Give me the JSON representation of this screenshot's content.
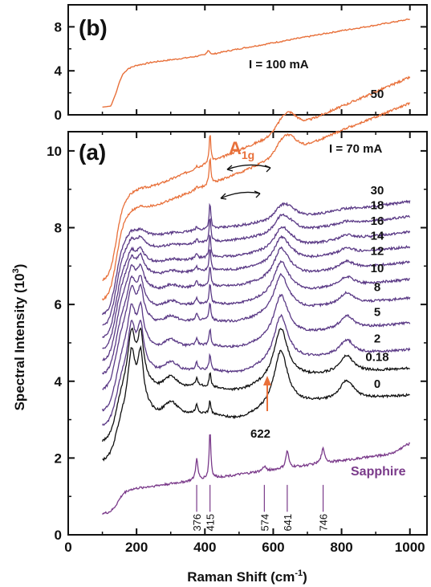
{
  "chart_data": [
    {
      "panel": "(b)",
      "type": "line",
      "xlabel": "",
      "ylabel": "",
      "xlim": [
        0,
        1050
      ],
      "ylim": [
        0,
        10
      ],
      "yticks": [
        0,
        4,
        8
      ],
      "annotation": "I = 100 mA",
      "color": "#e8703a",
      "grid": false,
      "series": [
        {
          "x": [
            100,
            125,
            140,
            150,
            160,
            175,
            200,
            250,
            300,
            350,
            400,
            410,
            420,
            450,
            500,
            600,
            700,
            800,
            900,
            1000
          ],
          "y": [
            0.7,
            0.8,
            2.0,
            3.0,
            3.7,
            4.2,
            4.5,
            4.8,
            5.0,
            5.2,
            5.45,
            5.9,
            5.5,
            5.7,
            6.0,
            6.55,
            7.1,
            7.65,
            8.15,
            8.7
          ]
        }
      ]
    },
    {
      "panel": "(a)",
      "type": "line",
      "xlabel": "Raman Shift (cm⁻¹)",
      "ylabel": "Spectral Intensity (10³)",
      "xlim": [
        0,
        1050
      ],
      "ylim": [
        0,
        10.5
      ],
      "xticks": [
        0,
        200,
        400,
        600,
        800,
        1000
      ],
      "yticks": [
        0,
        2,
        4,
        6,
        8,
        10
      ],
      "grid": false,
      "mode_label": "A",
      "mode_label_sub": "1g",
      "header_label": "I = 70 mA",
      "peak_labels": [
        "376",
        "415",
        "574",
        "641",
        "746"
      ],
      "peak_positions": [
        376,
        415,
        574,
        641,
        746
      ],
      "peak_622_label": "622",
      "colors": {
        "orange": "#e8703a",
        "purple": "#5b3a86",
        "black": "#111111",
        "sapphire": "#7a3a8a"
      },
      "series": [
        {
          "name": "70 mA",
          "label": "",
          "color": "orange",
          "base": 6.6,
          "slope": 0.0038,
          "rise": 1.9
        },
        {
          "name": "50 mA",
          "label": "50",
          "color": "orange",
          "base": 6.1,
          "slope": 0.0036,
          "rise": 1.9
        },
        {
          "name": "30 mA",
          "label": "30",
          "color": "purple",
          "base": 5.7,
          "slope": 0.0012,
          "rise": 1.9
        },
        {
          "name": "18 mA",
          "label": "18",
          "color": "purple",
          "base": 5.4,
          "slope": 0.0011,
          "rise": 1.9
        },
        {
          "name": "16 mA",
          "label": "16",
          "color": "purple",
          "base": 5.1,
          "slope": 0.0011,
          "rise": 1.8
        },
        {
          "name": "14 mA",
          "label": "14",
          "color": "purple",
          "base": 4.8,
          "slope": 0.001,
          "rise": 1.8
        },
        {
          "name": "12 mA",
          "label": "12",
          "color": "purple",
          "base": 4.5,
          "slope": 0.001,
          "rise": 1.7
        },
        {
          "name": "10 mA",
          "label": "10",
          "color": "purple",
          "base": 4.15,
          "slope": 0.001,
          "rise": 1.6
        },
        {
          "name": "8 mA",
          "label": "8",
          "color": "purple",
          "base": 3.75,
          "slope": 0.0009,
          "rise": 1.6
        },
        {
          "name": "5 mA",
          "label": "5",
          "color": "purple",
          "base": 3.2,
          "slope": 0.0009,
          "rise": 1.5
        },
        {
          "name": "2 mA",
          "label": "2",
          "color": "purple",
          "base": 2.8,
          "slope": 0.0008,
          "rise": 1.3
        },
        {
          "name": "0.18 mA",
          "label": "0.18",
          "color": "black",
          "base": 2.4,
          "slope": 0.0007,
          "rise": 1.3
        },
        {
          "name": "0 mA",
          "label": "0",
          "color": "black",
          "base": 1.9,
          "slope": 0.0007,
          "rise": 1.1
        },
        {
          "name": "Sapphire",
          "label": "Sapphire",
          "color": "sapphire",
          "base": 0.55,
          "slope": 0.0015,
          "rise": 0.6
        }
      ]
    }
  ]
}
